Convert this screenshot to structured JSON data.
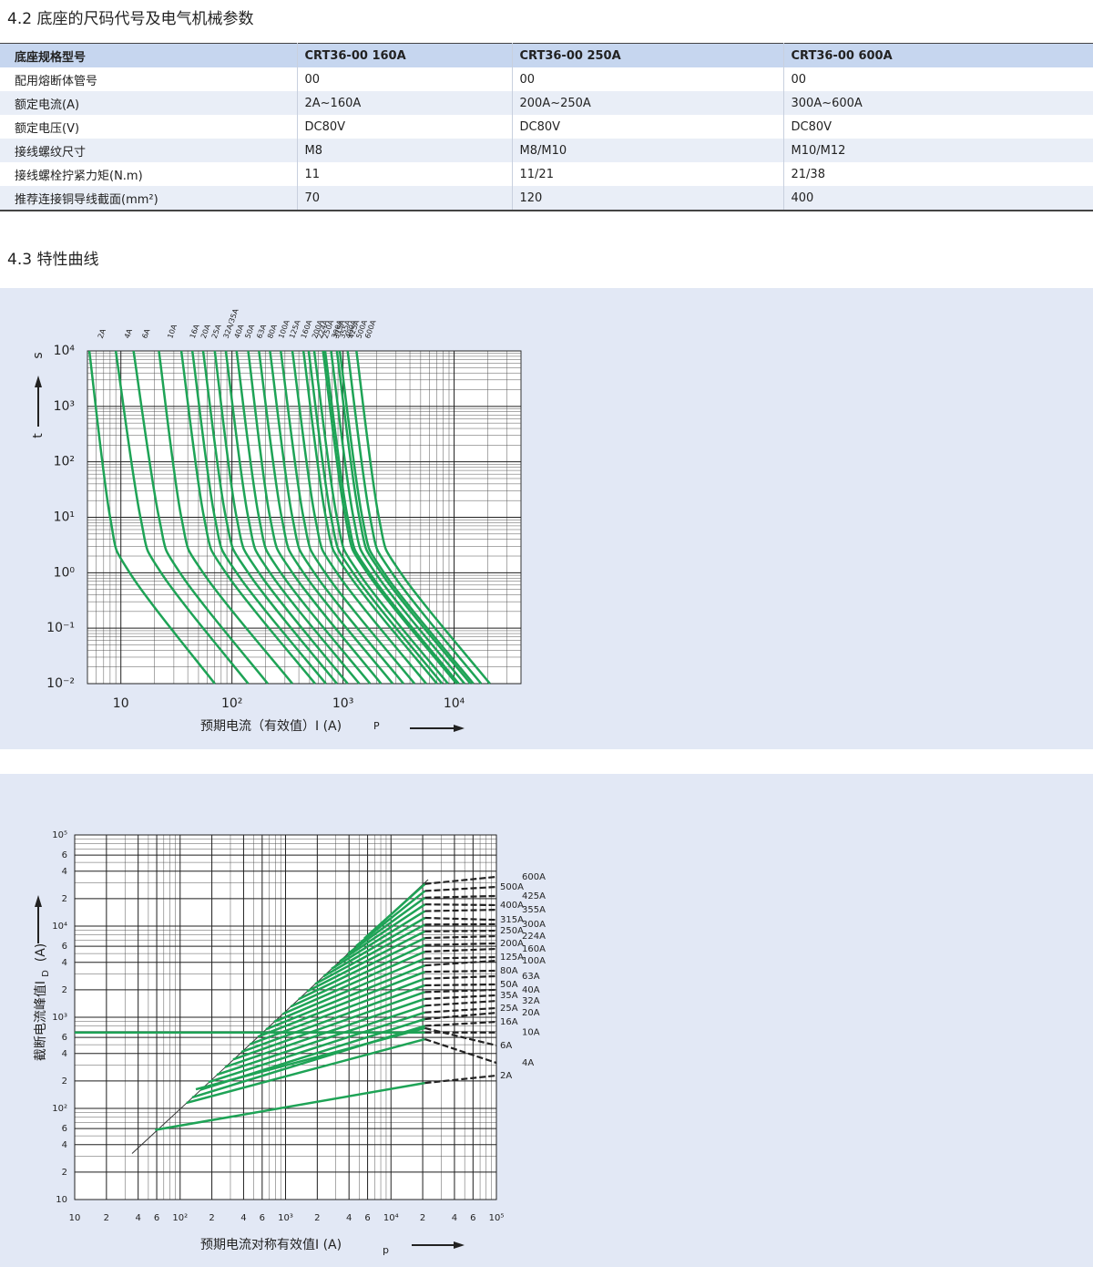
{
  "headings": [
    "4.2 底座的尺码代号及电气机械参数",
    "4.3 特性曲线"
  ],
  "table": {
    "header": [
      "底座规格型号",
      "CRT36-00 160A",
      "CRT36-00 250A",
      "CRT36-00 600A"
    ],
    "rows": [
      [
        "配用熔断体管号",
        "00",
        "00",
        "00"
      ],
      [
        "额定电流(A)",
        "2A~160A",
        "200A~250A",
        "300A~600A"
      ],
      [
        "额定电压(V)",
        "DC80V",
        "DC80V",
        "DC80V"
      ],
      [
        "接线螺纹尺寸",
        "M8",
        "M8/M10",
        "M10/M12"
      ],
      [
        "接线螺栓拧紧力矩(N.m)",
        "11",
        "11/21",
        "21/38"
      ],
      [
        "推荐连接铜导线截面(mm²)",
        "70",
        "120",
        "400"
      ]
    ]
  },
  "chart_data": [
    {
      "type": "line",
      "ylabel": "t",
      "yunit": "s",
      "xlabel": "预期电流（有效值）I (A)",
      "xlabel_sub": "P",
      "xscale": "log",
      "yscale": "log",
      "grid": true,
      "minor_grid": true,
      "color": "#1ea356",
      "xlim": [
        5,
        40000
      ],
      "ylim": [
        0.01,
        10000
      ],
      "xticks": [
        10,
        {
          "value": 100,
          "label": "10²"
        },
        {
          "value": 1000,
          "label": "10³"
        },
        {
          "value": 10000,
          "label": "10⁴"
        }
      ],
      "yticks": [
        {
          "value": 10000,
          "label": "10⁴"
        },
        {
          "value": 1000,
          "label": "10³"
        },
        {
          "value": 100,
          "label": "10²"
        },
        {
          "value": 10,
          "label": "10¹"
        },
        {
          "value": 1,
          "label": "10⁰"
        },
        {
          "value": 0.1,
          "label": "10⁻¹"
        },
        {
          "value": 0.01,
          "label": "10⁻²"
        }
      ],
      "series": [
        {
          "name": "2A",
          "x": [
            5.2,
            8,
            12,
            70
          ],
          "values": [
            10000,
            10,
            1,
            0.01
          ]
        },
        {
          "name": "4A",
          "x": [
            9,
            15,
            23,
            140
          ],
          "values": [
            10000,
            10,
            1,
            0.01
          ]
        },
        {
          "name": "6A",
          "x": [
            13,
            22,
            34,
            210
          ],
          "values": [
            10000,
            10,
            1,
            0.01
          ]
        },
        {
          "name": "10A",
          "x": [
            22,
            35,
            55,
            350
          ],
          "values": [
            10000,
            10,
            1,
            0.01
          ]
        },
        {
          "name": "16A",
          "x": [
            35,
            56,
            88,
            560
          ],
          "values": [
            10000,
            10,
            1,
            0.01
          ]
        },
        {
          "name": "20A",
          "x": [
            44,
            70,
            110,
            700
          ],
          "values": [
            10000,
            10,
            1,
            0.01
          ]
        },
        {
          "name": "25A",
          "x": [
            55,
            88,
            140,
            880
          ],
          "values": [
            10000,
            10,
            1,
            0.01
          ]
        },
        {
          "name": "32A/35A",
          "x": [
            70,
            110,
            175,
            1100
          ],
          "values": [
            10000,
            10,
            1,
            0.01
          ]
        },
        {
          "name": "40A",
          "x": [
            88,
            140,
            220,
            1400
          ],
          "values": [
            10000,
            10,
            1,
            0.01
          ]
        },
        {
          "name": "50A",
          "x": [
            110,
            175,
            275,
            1750
          ],
          "values": [
            10000,
            10,
            1,
            0.01
          ]
        },
        {
          "name": "63A",
          "x": [
            140,
            220,
            350,
            2200
          ],
          "values": [
            10000,
            10,
            1,
            0.01
          ]
        },
        {
          "name": "80A",
          "x": [
            175,
            280,
            440,
            2800
          ],
          "values": [
            10000,
            10,
            1,
            0.01
          ]
        },
        {
          "name": "100A",
          "x": [
            220,
            350,
            550,
            3500
          ],
          "values": [
            10000,
            10,
            1,
            0.01
          ]
        },
        {
          "name": "125A",
          "x": [
            275,
            440,
            690,
            4400
          ],
          "values": [
            10000,
            10,
            1,
            0.01
          ]
        },
        {
          "name": "160A",
          "x": [
            350,
            560,
            880,
            5600
          ],
          "values": [
            10000,
            10,
            1,
            0.01
          ]
        },
        {
          "name": "200A",
          "x": [
            440,
            700,
            1100,
            7000
          ],
          "values": [
            10000,
            10,
            1,
            0.01
          ]
        },
        {
          "name": "224A",
          "x": [
            490,
            780,
            1230,
            7800
          ],
          "values": [
            10000,
            10,
            1,
            0.01
          ]
        },
        {
          "name": "250A",
          "x": [
            550,
            880,
            1380,
            8800
          ],
          "values": [
            10000,
            10,
            1,
            0.01
          ]
        },
        {
          "name": "300A",
          "x": [
            660,
            1050,
            1650,
            10500
          ],
          "values": [
            10000,
            10,
            1,
            0.01
          ]
        },
        {
          "name": "315A",
          "x": [
            690,
            1100,
            1730,
            11000
          ],
          "values": [
            10000,
            10,
            1,
            0.01
          ]
        },
        {
          "name": "355A",
          "x": [
            780,
            1240,
            1950,
            12400
          ],
          "values": [
            10000,
            10,
            1,
            0.01
          ]
        },
        {
          "name": "400A",
          "x": [
            880,
            1400,
            2200,
            14000
          ],
          "values": [
            10000,
            10,
            1,
            0.01
          ]
        },
        {
          "name": "425A",
          "x": [
            935,
            1490,
            2340,
            14900
          ],
          "values": [
            10000,
            10,
            1,
            0.01
          ]
        },
        {
          "name": "500A",
          "x": [
            1100,
            1750,
            2750,
            17500
          ],
          "values": [
            10000,
            10,
            1,
            0.01
          ]
        },
        {
          "name": "600A",
          "x": [
            1320,
            2100,
            3300,
            21000
          ],
          "values": [
            10000,
            10,
            1,
            0.01
          ]
        }
      ]
    },
    {
      "type": "line",
      "ylabel": "截断电流峰值I",
      "ylabel_sub": "D",
      "yunit": "(A)",
      "xlabel": "预期电流对称有效值I (A)",
      "xlabel_sub": "p",
      "xscale": "log",
      "yscale": "log",
      "grid": true,
      "minor_grid": true,
      "color": "#1ea356",
      "dash_color": "#222",
      "dashed_last_segment": true,
      "xlim": [
        10,
        100000
      ],
      "ylim": [
        10,
        100000
      ],
      "xticks": [
        10,
        {
          "value": 20,
          "label": "2"
        },
        {
          "value": 40,
          "label": "4"
        },
        {
          "value": 60,
          "label": "6"
        },
        {
          "value": 100,
          "label": "10²"
        },
        {
          "value": 200,
          "label": "2"
        },
        {
          "value": 400,
          "label": "4"
        },
        {
          "value": 600,
          "label": "6"
        },
        {
          "value": 1000,
          "label": "10³"
        },
        {
          "value": 2000,
          "label": "2"
        },
        {
          "value": 4000,
          "label": "4"
        },
        {
          "value": 6000,
          "label": "6"
        },
        {
          "value": 10000,
          "label": "10⁴"
        },
        {
          "value": 20000,
          "label": "2"
        },
        {
          "value": 40000,
          "label": "4"
        },
        {
          "value": 60000,
          "label": "6"
        },
        {
          "value": 100000,
          "label": "10⁵"
        }
      ],
      "yticks": [
        10,
        {
          "value": 20,
          "label": "2"
        },
        {
          "value": 40,
          "label": "4"
        },
        {
          "value": 60,
          "label": "6"
        },
        {
          "value": 100,
          "label": "10²"
        },
        {
          "value": 200,
          "label": "2"
        },
        {
          "value": 400,
          "label": "4"
        },
        {
          "value": 600,
          "label": "6"
        },
        {
          "value": 1000,
          "label": "10³"
        },
        {
          "value": 2000,
          "label": "2"
        },
        {
          "value": 4000,
          "label": "4"
        },
        {
          "value": 6000,
          "label": "6"
        },
        {
          "value": 10000,
          "label": "10⁴"
        },
        {
          "value": 20000,
          "label": "2"
        },
        {
          "value": 40000,
          "label": "4"
        },
        {
          "value": 60000,
          "label": "6"
        },
        {
          "value": 100000,
          "label": "10⁵"
        }
      ],
      "reference": {
        "x": [
          35,
          22500
        ],
        "values": [
          32,
          32400
        ],
        "color": "#333"
      },
      "series": [
        {
          "name": "600A",
          "x": [
            5590,
            21000,
            100000
          ],
          "values": [
            7310,
            29000,
            34700
          ]
        },
        {
          "name": "500A",
          "x": [
            4670,
            21000,
            100000
          ],
          "values": [
            6040,
            24300,
            26900
          ]
        },
        {
          "name": "425A",
          "x": [
            3910,
            21000,
            100000
          ],
          "values": [
            4990,
            20500,
            21400
          ]
        },
        {
          "name": "400A",
          "x": [
            3270,
            21000,
            100000
          ],
          "values": [
            4120,
            17300,
            17000
          ]
        },
        {
          "name": "355A",
          "x": [
            2730,
            21000,
            100000
          ],
          "values": [
            3400,
            14600,
            15100
          ]
        },
        {
          "name": "315A",
          "x": [
            2290,
            21000,
            100000
          ],
          "values": [
            2810,
            12300,
            11700
          ]
        },
        {
          "name": "300A",
          "x": [
            1910,
            21000,
            100000
          ],
          "values": [
            2320,
            10400,
            10500
          ]
        },
        {
          "name": "250A",
          "x": [
            1600,
            21000,
            100000
          ],
          "values": [
            1920,
            8750,
            8900
          ]
        },
        {
          "name": "224A",
          "x": [
            1330,
            21000,
            100000
          ],
          "values": [
            1580,
            7400,
            7760
          ]
        },
        {
          "name": "200A",
          "x": [
            1120,
            21000,
            100000
          ],
          "values": [
            1310,
            6200,
            6460
          ]
        },
        {
          "name": "160A",
          "x": [
            933,
            21000,
            100000
          ],
          "values": [
            1080,
            5250,
            5620
          ]
        },
        {
          "name": "125A",
          "x": [
            780,
            21000,
            100000
          ],
          "values": [
            893,
            4400,
            4570
          ]
        },
        {
          "name": "100A",
          "x": [
            652,
            21000,
            100000
          ],
          "values": [
            738,
            3700,
            4170
          ]
        },
        {
          "name": "80A",
          "x": [
            545,
            21000,
            100000
          ],
          "values": [
            610,
            3150,
            3240
          ]
        },
        {
          "name": "63A",
          "x": [
            456,
            21000,
            100000
          ],
          "values": [
            504,
            2650,
            2820
          ]
        },
        {
          "name": "50A",
          "x": [
            381,
            21000,
            100000
          ],
          "values": [
            416,
            2240,
            2290
          ]
        },
        {
          "name": "40A",
          "x": [
            318,
            21000,
            100000
          ],
          "values": [
            344,
            1890,
            2000
          ]
        },
        {
          "name": "35A",
          "x": [
            266,
            21000,
            100000
          ],
          "values": [
            284,
            1590,
            1740
          ]
        },
        {
          "name": "32A",
          "x": [
            223,
            21000,
            100000
          ],
          "values": [
            234,
            1340,
            1510
          ]
        },
        {
          "name": "25A",
          "x": [
            186,
            21000,
            100000
          ],
          "values": [
            194,
            1130,
            1260
          ]
        },
        {
          "name": "20A",
          "x": [
            156,
            21000,
            100000
          ],
          "values": [
            160,
            955,
            1120
          ]
        },
        {
          "name": "16A",
          "x": [
            130,
            21000,
            100000
          ],
          "values": [
            132,
            805,
            890
          ]
        },
        {
          "name": "10A",
          "x": [
            10,
            21000,
            100000
          ],
          "values": [
            680,
            680,
            680
          ]
        },
        {
          "name": "6A",
          "x": [
            141,
            21000,
            100000
          ],
          "values": [
            162,
            759,
            490
          ]
        },
        {
          "name": "4A",
          "x": [
            115,
            21000,
            100000
          ],
          "values": [
            115,
            575,
            316
          ]
        },
        {
          "name": "2A",
          "x": [
            58,
            21000,
            100000
          ],
          "values": [
            58,
            190,
            229
          ]
        }
      ]
    }
  ]
}
